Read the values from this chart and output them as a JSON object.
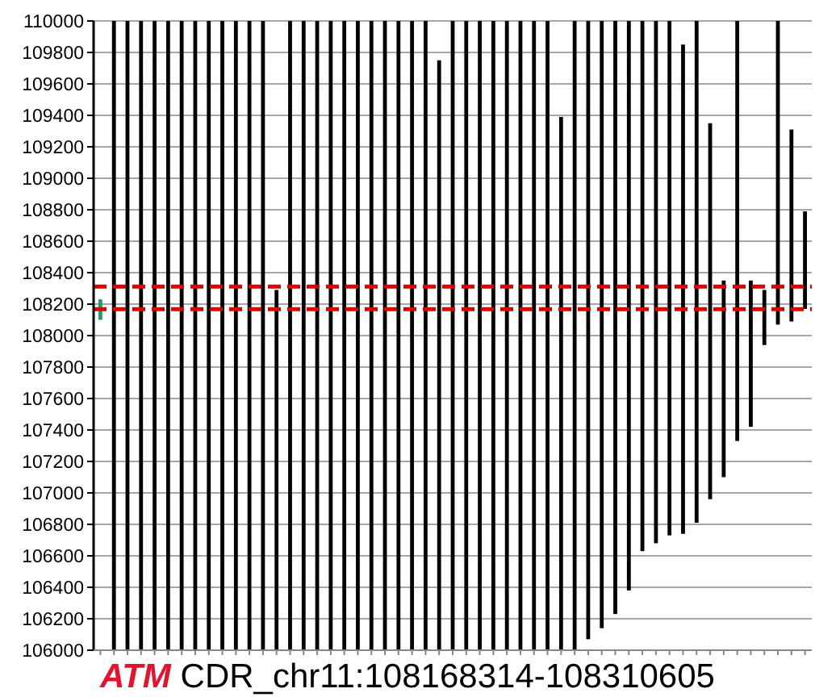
{
  "chart_data": {
    "type": "bar",
    "title": "ATM CDR_chr11:108168314-108310605",
    "categories": [
      null,
      null,
      null,
      null,
      null,
      null,
      null,
      null,
      null,
      null,
      null,
      null,
      null,
      null,
      null,
      null,
      null,
      null,
      null,
      null,
      null,
      null,
      null,
      null,
      null,
      null,
      null,
      null,
      null,
      null,
      null,
      null,
      null,
      null,
      null,
      null,
      null,
      null,
      null,
      null,
      null,
      null,
      null,
      null,
      null,
      null,
      null,
      null,
      null,
      null,
      null,
      null,
      null
    ],
    "base": [
      108100,
      106000,
      106000,
      106000,
      106000,
      106000,
      106000,
      106000,
      106000,
      106000,
      106000,
      106000,
      106000,
      106000,
      106000,
      106000,
      106000,
      106000,
      106000,
      106000,
      106000,
      106000,
      106000,
      106000,
      106000,
      106000,
      106000,
      106000,
      106000,
      106000,
      106000,
      106000,
      106000,
      106000,
      106000,
      106000,
      106070,
      106140,
      106230,
      106380,
      106630,
      106680,
      106730,
      106740,
      106810,
      106960,
      107100,
      107330,
      107420,
      107940,
      108070,
      108090,
      108170
    ],
    "values": [
      130,
      4000,
      4000,
      4000,
      4000,
      4000,
      4000,
      4000,
      4000,
      4000,
      4000,
      4000,
      4000,
      2290,
      4000,
      4000,
      4000,
      4000,
      4000,
      4000,
      4000,
      4000,
      4000,
      4000,
      4000,
      3750,
      4000,
      4000,
      4000,
      4000,
      4000,
      4000,
      4000,
      4000,
      3390,
      4000,
      3930,
      3860,
      3770,
      3620,
      3370,
      3320,
      3270,
      3110,
      3190,
      2390,
      1250,
      2670,
      930,
      350,
      1930,
      1220,
      620
    ],
    "colors": [
      "#1aa06a",
      "#000000",
      "#000000",
      "#000000",
      "#000000",
      "#000000",
      "#000000",
      "#000000",
      "#000000",
      "#000000",
      "#000000",
      "#000000",
      "#000000",
      "#000000",
      "#000000",
      "#000000",
      "#000000",
      "#000000",
      "#000000",
      "#000000",
      "#000000",
      "#000000",
      "#000000",
      "#000000",
      "#000000",
      "#000000",
      "#000000",
      "#000000",
      "#000000",
      "#000000",
      "#000000",
      "#000000",
      "#000000",
      "#000000",
      "#000000",
      "#000000",
      "#000000",
      "#000000",
      "#000000",
      "#000000",
      "#000000",
      "#000000",
      "#000000",
      "#000000",
      "#000000",
      "#000000",
      "#000000",
      "#000000",
      "#000000",
      "#000000",
      "#000000",
      "#000000",
      "#000000"
    ],
    "ylim": [
      106000,
      110000
    ],
    "yticks": [
      106000,
      106200,
      106400,
      106600,
      106800,
      107000,
      107200,
      107400,
      107600,
      107800,
      108000,
      108200,
      108400,
      108600,
      108800,
      109000,
      109200,
      109400,
      109600,
      109800,
      110000
    ],
    "ref_lines": [
      {
        "axis": "y",
        "value": 108311,
        "color": "#e00000",
        "line_style": "dashed"
      },
      {
        "axis": "y",
        "value": 108168,
        "color": "#e00000",
        "line_style": "dashed"
      }
    ],
    "grid": "y",
    "tick_labels": "y"
  }
}
